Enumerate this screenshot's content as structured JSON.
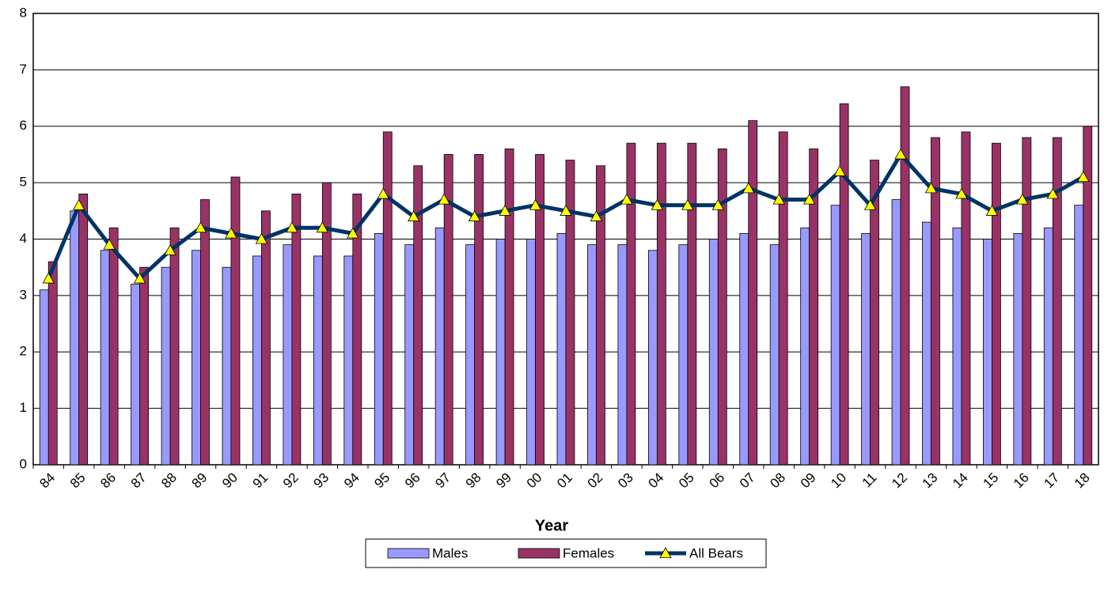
{
  "chart_data": {
    "type": "bar",
    "x_label": "Year",
    "categories": [
      "84",
      "85",
      "86",
      "87",
      "88",
      "89",
      "90",
      "91",
      "92",
      "93",
      "94",
      "95",
      "96",
      "97",
      "98",
      "99",
      "00",
      "01",
      "02",
      "03",
      "04",
      "05",
      "06",
      "07",
      "08",
      "09",
      "10",
      "11",
      "12",
      "13",
      "14",
      "15",
      "16",
      "17",
      "18"
    ],
    "series": [
      {
        "name": "Males",
        "type": "bar",
        "color": "#9999ff",
        "values": [
          3.1,
          4.5,
          3.8,
          3.2,
          3.5,
          3.8,
          3.5,
          3.7,
          3.9,
          3.7,
          3.7,
          4.1,
          3.9,
          4.2,
          3.9,
          4.0,
          4.0,
          4.1,
          3.9,
          3.9,
          3.8,
          3.9,
          4.0,
          4.1,
          3.9,
          4.2,
          4.6,
          4.1,
          4.7,
          4.3,
          4.2,
          4.0,
          4.1,
          4.2,
          4.6
        ]
      },
      {
        "name": "Females",
        "type": "bar",
        "color": "#993366",
        "values": [
          3.6,
          4.8,
          4.2,
          3.5,
          4.2,
          4.7,
          5.1,
          4.5,
          4.8,
          5.0,
          4.8,
          5.9,
          5.3,
          5.5,
          5.5,
          5.6,
          5.5,
          5.4,
          5.3,
          5.7,
          5.7,
          5.7,
          5.6,
          6.1,
          5.9,
          5.6,
          6.4,
          5.4,
          6.7,
          5.8,
          5.9,
          5.7,
          5.8,
          5.8,
          6.0
        ]
      },
      {
        "name": "All Bears",
        "type": "line",
        "color": "#003366",
        "marker_color": "#ffff00",
        "values": [
          3.3,
          4.6,
          3.9,
          3.3,
          3.8,
          4.2,
          4.1,
          4.0,
          4.2,
          4.2,
          4.1,
          4.8,
          4.4,
          4.7,
          4.4,
          4.5,
          4.6,
          4.5,
          4.4,
          4.7,
          4.6,
          4.6,
          4.6,
          4.9,
          4.7,
          4.7,
          5.2,
          4.6,
          5.5,
          4.9,
          4.8,
          4.5,
          4.7,
          4.8,
          5.1
        ]
      }
    ],
    "ylim": [
      0,
      8
    ],
    "yticks": [
      0,
      1,
      2,
      3,
      4,
      5,
      6,
      7,
      8
    ],
    "grid": true,
    "legend": "bottom"
  }
}
